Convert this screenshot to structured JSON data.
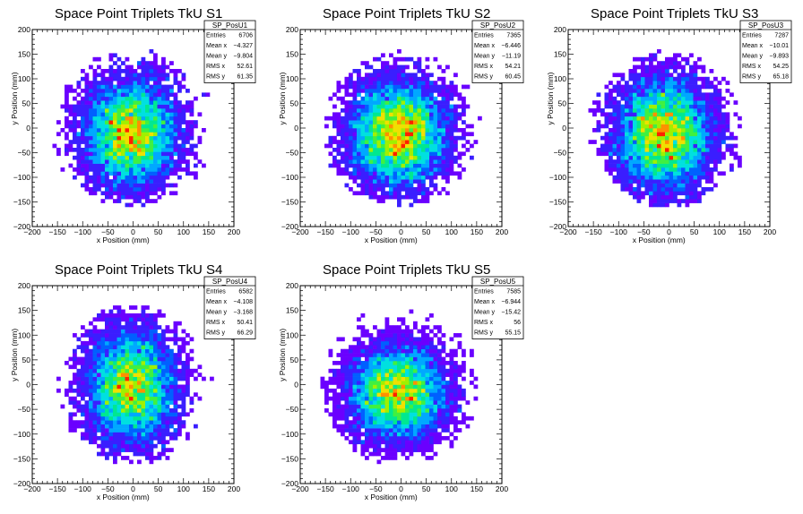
{
  "chart_data": [
    {
      "type": "heatmap",
      "title": "Space Point Triplets TkU S1",
      "xlabel": "x Position (mm)",
      "ylabel": "y Position (mm)",
      "xlim": [
        -200,
        200
      ],
      "ylim": [
        -200,
        200
      ],
      "x_ticks": [
        "−200",
        "−150",
        "−100",
        "−50",
        "0",
        "50",
        "100",
        "150",
        "200"
      ],
      "y_ticks": [
        "−200",
        "−150",
        "−100",
        "−50",
        "0",
        "50",
        "100",
        "150",
        "200"
      ],
      "stats": {
        "name": "SP_PosU1",
        "rows": [
          [
            "Entries",
            "6706"
          ],
          [
            "Mean x",
            "−4.327"
          ],
          [
            "Mean y",
            "−9.804"
          ],
          [
            "RMS x",
            "52.61"
          ],
          [
            "RMS y",
            "61.35"
          ]
        ]
      },
      "distribution": {
        "mean_x": -4.327,
        "mean_y": -9.804,
        "rms_x": 52.61,
        "rms_y": 61.35,
        "entries": 6706,
        "radius": 160,
        "bin_width": 8
      }
    },
    {
      "type": "heatmap",
      "title": "Space Point Triplets TkU S2",
      "xlabel": "x Position (mm)",
      "ylabel": "y Position (mm)",
      "xlim": [
        -200,
        200
      ],
      "ylim": [
        -200,
        200
      ],
      "x_ticks": [
        "−200",
        "−150",
        "−100",
        "−50",
        "0",
        "50",
        "100",
        "150",
        "200"
      ],
      "y_ticks": [
        "−200",
        "−150",
        "−100",
        "−50",
        "0",
        "50",
        "100",
        "150",
        "200"
      ],
      "stats": {
        "name": "SP_PosU2",
        "rows": [
          [
            "Entries",
            "7365"
          ],
          [
            "Mean x",
            "−6.446"
          ],
          [
            "Mean y",
            "−11.19"
          ],
          [
            "RMS x",
            "54.21"
          ],
          [
            "RMS y",
            "60.45"
          ]
        ]
      },
      "distribution": {
        "mean_x": -6.446,
        "mean_y": -11.19,
        "rms_x": 54.21,
        "rms_y": 60.45,
        "entries": 7365,
        "radius": 160,
        "bin_width": 8
      }
    },
    {
      "type": "heatmap",
      "title": "Space Point Triplets TkU S3",
      "xlabel": "x Position (mm)",
      "ylabel": "y Position (mm)",
      "xlim": [
        -200,
        200
      ],
      "ylim": [
        -200,
        200
      ],
      "x_ticks": [
        "−200",
        "−150",
        "−100",
        "−50",
        "0",
        "50",
        "100",
        "150",
        "200"
      ],
      "y_ticks": [
        "−200",
        "−150",
        "−100",
        "−50",
        "0",
        "50",
        "100",
        "150",
        "200"
      ],
      "stats": {
        "name": "SP_PosU3",
        "rows": [
          [
            "Entries",
            "7287"
          ],
          [
            "Mean x",
            "−10.01"
          ],
          [
            "Mean y",
            "−9.893"
          ],
          [
            "RMS x",
            "54.25"
          ],
          [
            "RMS y",
            "65.18"
          ]
        ]
      },
      "distribution": {
        "mean_x": -10.01,
        "mean_y": -9.893,
        "rms_x": 54.25,
        "rms_y": 65.18,
        "entries": 7287,
        "radius": 160,
        "bin_width": 8
      }
    },
    {
      "type": "heatmap",
      "title": "Space Point Triplets TkU S4",
      "xlabel": "x Position (mm)",
      "ylabel": "y Position (mm)",
      "xlim": [
        -200,
        200
      ],
      "ylim": [
        -200,
        200
      ],
      "x_ticks": [
        "−200",
        "−150",
        "−100",
        "−50",
        "0",
        "50",
        "100",
        "150",
        "200"
      ],
      "y_ticks": [
        "−200",
        "−150",
        "−100",
        "−50",
        "0",
        "50",
        "100",
        "150",
        "200"
      ],
      "stats": {
        "name": "SP_PosU4",
        "rows": [
          [
            "Entries",
            "6582"
          ],
          [
            "Mean x",
            "−4.108"
          ],
          [
            "Mean y",
            "−3.168"
          ],
          [
            "RMS x",
            "50.41"
          ],
          [
            "RMS y",
            "66.29"
          ]
        ]
      },
      "distribution": {
        "mean_x": -4.108,
        "mean_y": -3.168,
        "rms_x": 50.41,
        "rms_y": 66.29,
        "entries": 6582,
        "radius": 160,
        "bin_width": 8
      }
    },
    {
      "type": "heatmap",
      "title": "Space Point Triplets TkU S5",
      "xlabel": "x Position (mm)",
      "ylabel": "y Position (mm)",
      "xlim": [
        -200,
        200
      ],
      "ylim": [
        -200,
        200
      ],
      "x_ticks": [
        "−200",
        "−150",
        "−100",
        "−50",
        "0",
        "50",
        "100",
        "150",
        "200"
      ],
      "y_ticks": [
        "−200",
        "−150",
        "−100",
        "−50",
        "0",
        "50",
        "100",
        "150",
        "200"
      ],
      "stats": {
        "name": "SP_PosU5",
        "rows": [
          [
            "Entries",
            "7585"
          ],
          [
            "Mean x",
            "−6.944"
          ],
          [
            "Mean y",
            "−15.42"
          ],
          [
            "RMS x",
            "56"
          ],
          [
            "RMS y",
            "55.15"
          ]
        ]
      },
      "distribution": {
        "mean_x": -6.944,
        "mean_y": -15.42,
        "rms_x": 56,
        "rms_y": 55.15,
        "entries": 7585,
        "radius": 160,
        "bin_width": 8
      }
    }
  ],
  "colors": {
    "palette": [
      "#6a00ff",
      "#3a1eff",
      "#0060ff",
      "#00a8ff",
      "#00e0e0",
      "#00e890",
      "#40f040",
      "#a0f000",
      "#f0e000",
      "#ff9000",
      "#ff2000"
    ],
    "axis": "#000000",
    "background": "#ffffff"
  }
}
